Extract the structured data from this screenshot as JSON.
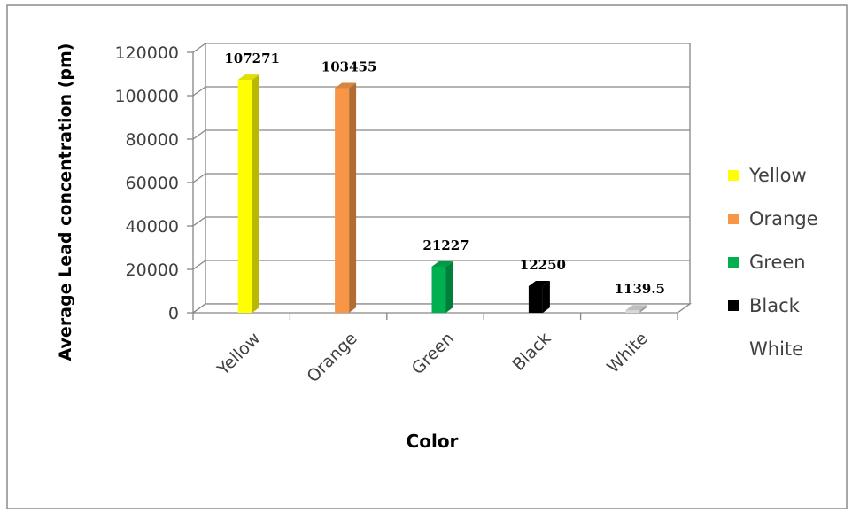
{
  "chart_data": {
    "type": "bar",
    "xlabel": "Color",
    "ylabel": "Average Lead concentration (pm)",
    "categories": [
      "Yellow",
      "Orange",
      "Green",
      "Black",
      "White"
    ],
    "values": [
      107271,
      103455,
      21227,
      12250,
      1139.5
    ],
    "value_labels": [
      "107271",
      "103455",
      "21227",
      "12250",
      "1139.5"
    ],
    "colors": [
      "#ffff00",
      "#f79646",
      "#00b050",
      "#000000",
      "#d9d9d9"
    ],
    "yticks": [
      "0",
      "20000",
      "40000",
      "60000",
      "80000",
      "100000",
      "120000"
    ],
    "ylim": [
      0,
      120000
    ],
    "grid": true,
    "three_d": true,
    "legend": {
      "position": "right",
      "entries": [
        "Yellow",
        "Orange",
        "Green",
        "Black",
        "White"
      ]
    }
  }
}
